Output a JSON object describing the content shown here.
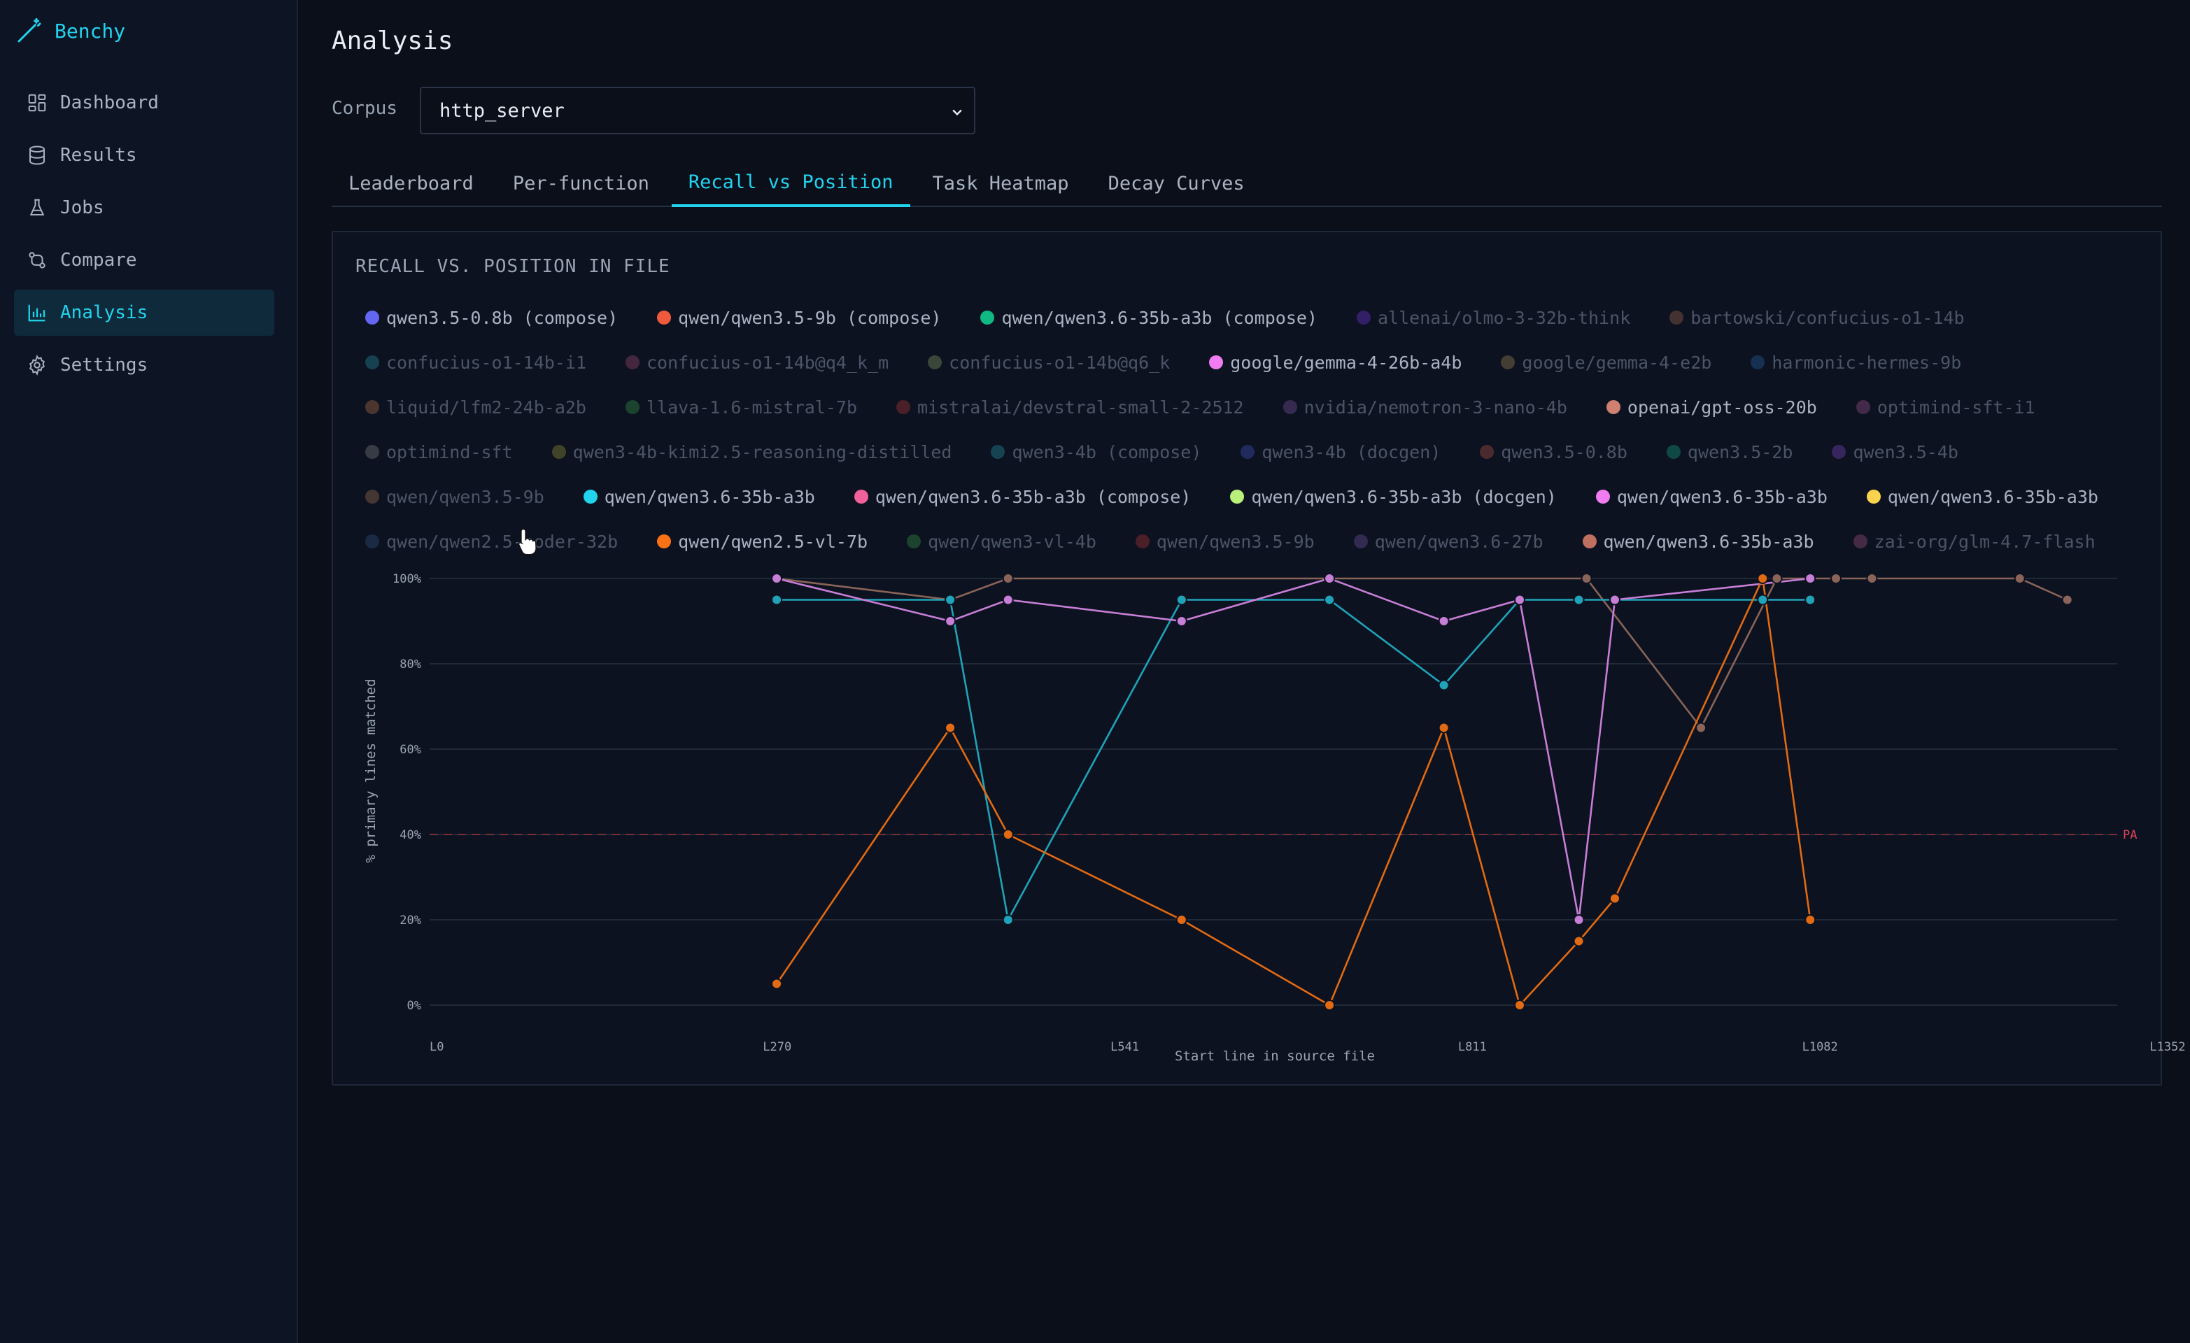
{
  "app": {
    "name": "Benchy"
  },
  "sidebar": {
    "items": [
      {
        "label": "Dashboard",
        "icon": "dashboard-icon",
        "active": false
      },
      {
        "label": "Results",
        "icon": "database-icon",
        "active": false
      },
      {
        "label": "Jobs",
        "icon": "flask-icon",
        "active": false
      },
      {
        "label": "Compare",
        "icon": "git-compare-icon",
        "active": false
      },
      {
        "label": "Analysis",
        "icon": "bar-chart-icon",
        "active": true
      },
      {
        "label": "Settings",
        "icon": "gear-icon",
        "active": false
      }
    ]
  },
  "page": {
    "title": "Analysis",
    "corpus_label": "Corpus",
    "corpus_value": "http_server"
  },
  "tabs": [
    {
      "label": "Leaderboard",
      "active": false
    },
    {
      "label": "Per-function",
      "active": false
    },
    {
      "label": "Recall vs Position",
      "active": true
    },
    {
      "label": "Task Heatmap",
      "active": false
    },
    {
      "label": "Decay Curves",
      "active": false
    }
  ],
  "panel": {
    "title": "RECALL VS. POSITION IN FILE"
  },
  "legend": [
    {
      "label": "qwen3.5-0.8b (compose)",
      "color": "#6366f1",
      "dim": false
    },
    {
      "label": "qwen/qwen3.5-9b (compose)",
      "color": "#f05a3c",
      "dim": false
    },
    {
      "label": "qwen/qwen3.6-35b-a3b (compose)",
      "color": "#10b981",
      "dim": false
    },
    {
      "label": "allenai/olmo-3-32b-think",
      "color": "#7c3aed",
      "dim": true
    },
    {
      "label": "bartowski/confucius-o1-14b",
      "color": "#b07050",
      "dim": true
    },
    {
      "label": "confucius-o1-14b-i1",
      "color": "#2a9bb0",
      "dim": true
    },
    {
      "label": "confucius-o1-14b@q4_k_m",
      "color": "#b0507a",
      "dim": true
    },
    {
      "label": "confucius-o1-14b@q6_k",
      "color": "#8fa86a",
      "dim": true
    },
    {
      "label": "google/gemma-4-26b-a4b",
      "color": "#f07cf0",
      "dim": false
    },
    {
      "label": "google/gemma-4-e2b",
      "color": "#b0905a",
      "dim": true
    },
    {
      "label": "harmonic-hermes-9b",
      "color": "#2a6ab0",
      "dim": true
    },
    {
      "label": "liquid/lfm2-24b-a2b",
      "color": "#c07a4a",
      "dim": true
    },
    {
      "label": "llava-1.6-mistral-7b",
      "color": "#3aa04a",
      "dim": true
    },
    {
      "label": "mistralai/devstral-small-2-2512",
      "color": "#c03a3a",
      "dim": true
    },
    {
      "label": "nvidia/nemotron-3-nano-4b",
      "color": "#8a5ab0",
      "dim": true
    },
    {
      "label": "openai/gpt-oss-20b",
      "color": "#d08070",
      "dim": false
    },
    {
      "label": "optimind-sft-i1",
      "color": "#b05a9a",
      "dim": true
    },
    {
      "label": "optimind-sft",
      "color": "#8a8a8a",
      "dim": true
    },
    {
      "label": "qwen3-4b-kimi2.5-reasoning-distilled",
      "color": "#a0a03a",
      "dim": true
    },
    {
      "label": "qwen3-4b (compose)",
      "color": "#2aa0b0",
      "dim": true
    },
    {
      "label": "qwen3-4b (docgen)",
      "color": "#4a5ad0",
      "dim": true
    },
    {
      "label": "qwen3.5-0.8b",
      "color": "#c05a4a",
      "dim": true
    },
    {
      "label": "qwen3.5-2b",
      "color": "#1ab090",
      "dim": true
    },
    {
      "label": "qwen3.5-4b",
      "color": "#8a4ad0",
      "dim": true
    },
    {
      "label": "qwen/qwen3.5-9b",
      "color": "#b07a5a",
      "dim": true
    },
    {
      "label": "qwen/qwen3.6-35b-a3b",
      "color": "#22d3ee",
      "dim": false
    },
    {
      "label": "qwen/qwen3.6-35b-a3b (compose)",
      "color": "#f0609a",
      "dim": false
    },
    {
      "label": "qwen/qwen3.6-35b-a3b (docgen)",
      "color": "#b8f07a",
      "dim": false
    },
    {
      "label": "qwen/qwen3.6-35b-a3b",
      "color": "#f07cf0",
      "dim": false
    },
    {
      "label": "qwen/qwen3.6-35b-a3b",
      "color": "#fcd34d",
      "dim": false
    },
    {
      "label": "qwen/qwen2.5-coder-32b",
      "color": "#3a5a8a",
      "dim": true
    },
    {
      "label": "qwen/qwen2.5-vl-7b",
      "color": "#f97316",
      "dim": false
    },
    {
      "label": "qwen/qwen3-vl-4b",
      "color": "#3aa04a",
      "dim": true
    },
    {
      "label": "qwen/qwen3.5-9b",
      "color": "#c03a3a",
      "dim": true
    },
    {
      "label": "qwen/qwen3.6-27b",
      "color": "#7a5ab0",
      "dim": true
    },
    {
      "label": "qwen/qwen3.6-35b-a3b",
      "color": "#c07060",
      "dim": false
    },
    {
      "label": "zai-org/glm-4.7-flash",
      "color": "#b05a8a",
      "dim": true
    }
  ],
  "chart_data": {
    "type": "line",
    "xlabel": "Start line in source file",
    "ylabel": "% primary lines matched",
    "x_ticks": [
      "L0",
      "L270",
      "L541",
      "L811",
      "L1082",
      "L1352"
    ],
    "xlim": [
      0,
      1352
    ],
    "y_ticks": [
      "0%",
      "20%",
      "40%",
      "60%",
      "80%",
      "100%"
    ],
    "ylim": [
      0,
      100
    ],
    "threshold": {
      "value": 40,
      "label": "PA"
    },
    "grid": true,
    "series": [
      {
        "name": "openai/gpt-oss-20b",
        "color": "#8a6458",
        "x": [
          270,
          405,
          450,
          900,
          989,
          1048,
          1094,
          1122,
          1237,
          1274
        ],
        "y": [
          100,
          95,
          100,
          100,
          65,
          100,
          100,
          100,
          100,
          95
        ]
      },
      {
        "name": "qwen/qwen3.6-35b-a3b",
        "color": "#1fa3b8",
        "x": [
          270,
          405,
          450,
          585,
          700,
          789,
          848,
          894,
          922,
          1037,
          1074
        ],
        "y": [
          95,
          95,
          20,
          95,
          95,
          75,
          95,
          95,
          95,
          95,
          95
        ]
      },
      {
        "name": "google/gemma-4-26b-a4b",
        "color": "#c77ed6",
        "x": [
          270,
          405,
          450,
          585,
          700,
          789,
          848,
          894,
          922,
          1074
        ],
        "y": [
          100,
          90,
          95,
          90,
          100,
          90,
          95,
          20,
          95,
          100
        ]
      },
      {
        "name": "qwen/qwen2.5-vl-7b",
        "color": "#e26a12",
        "x": [
          270,
          405,
          450,
          585,
          700,
          789,
          848,
          894,
          922,
          1037,
          1074
        ],
        "y": [
          5,
          65,
          40,
          20,
          0,
          65,
          0,
          15,
          25,
          100,
          20
        ]
      }
    ]
  }
}
